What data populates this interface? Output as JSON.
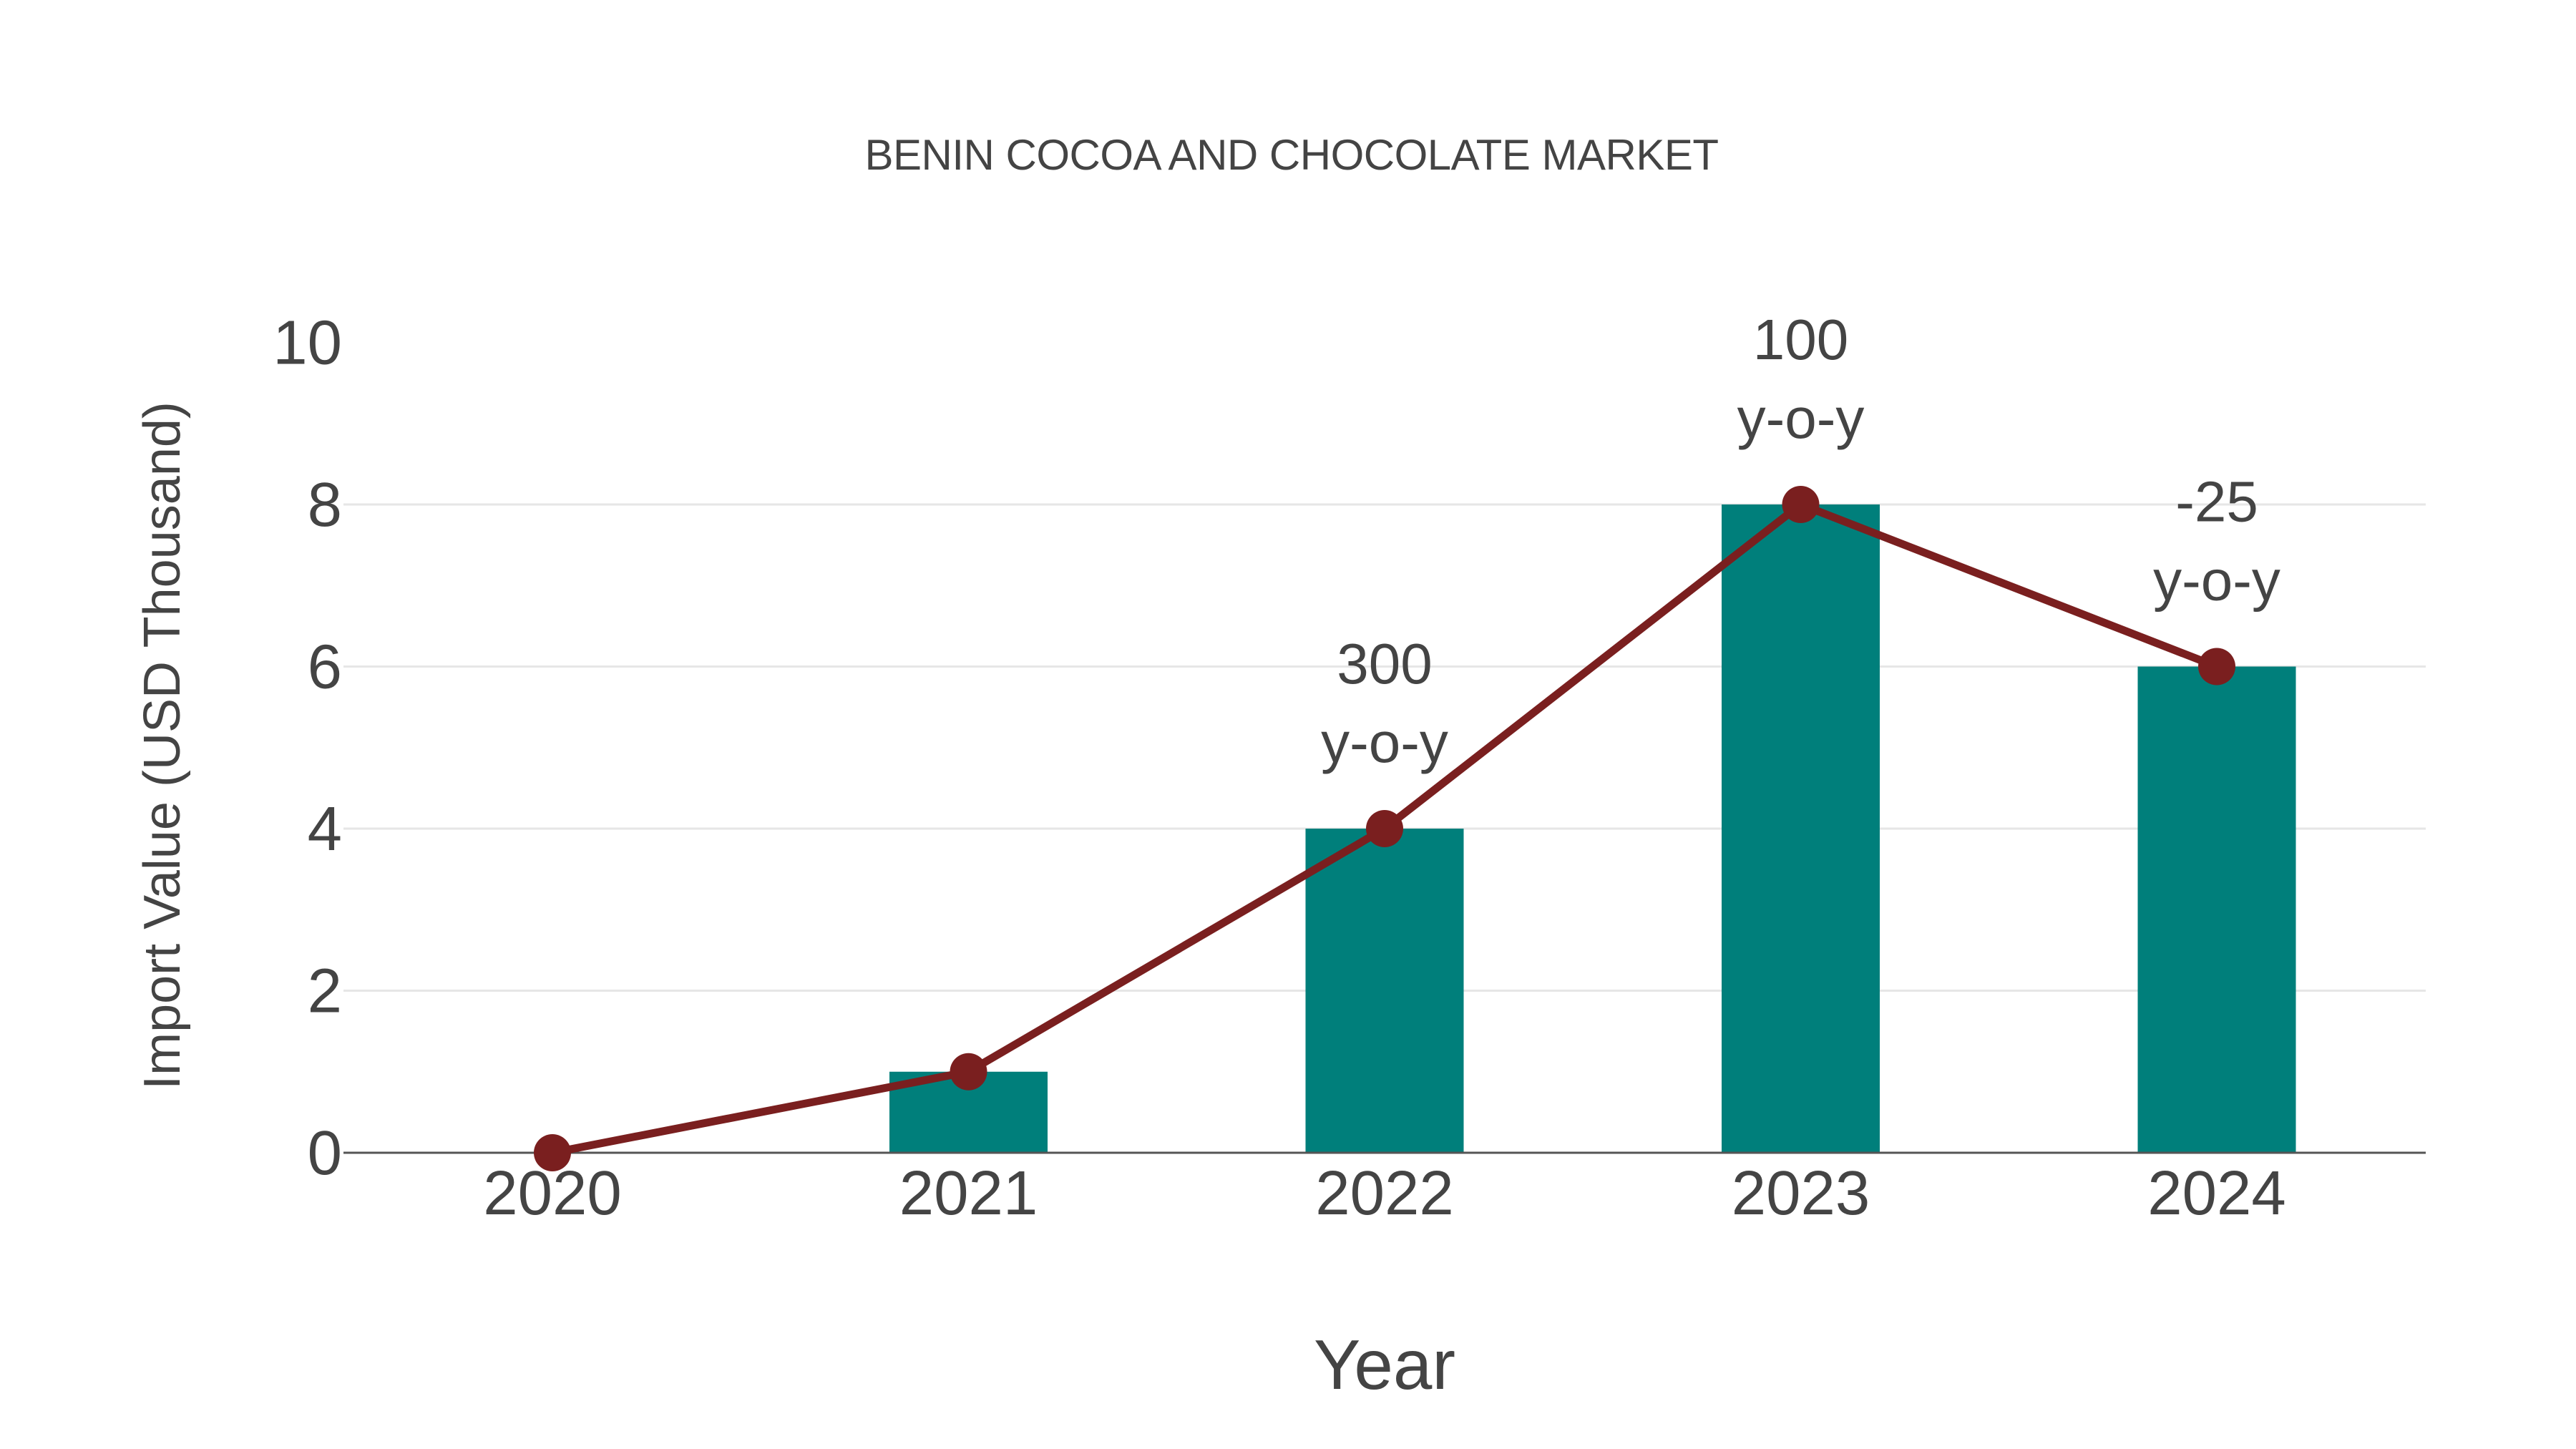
{
  "chart_data": {
    "type": "bar+line",
    "title": "BENIN COCOA AND CHOCOLATE MARKET",
    "xlabel": "Year",
    "ylabel": "Import Value (USD Thousand)",
    "categories": [
      "2020",
      "2021",
      "2022",
      "2023",
      "2024"
    ],
    "series": [
      {
        "name": "Import Value (bars)",
        "type": "bar",
        "values": [
          0,
          1,
          4,
          8,
          6
        ],
        "color": "#007F7B"
      },
      {
        "name": "Import Value (line)",
        "type": "line",
        "values": [
          0,
          1,
          4,
          8,
          6
        ],
        "color": "#7A1F1F"
      }
    ],
    "annotations": [
      {
        "category": "2022",
        "value": "300",
        "suffix": "y-o-y"
      },
      {
        "category": "2023",
        "value": "100",
        "suffix": "y-o-y"
      },
      {
        "category": "2024",
        "value": "-25",
        "suffix": "y-o-y"
      }
    ],
    "yticks": [
      0,
      2,
      4,
      6,
      8,
      10
    ],
    "ylim": [
      0,
      10
    ],
    "grid": true,
    "legend": "none"
  },
  "colors": {
    "bar": "#007F7B",
    "line": "#7A1F1F",
    "text": "#444444",
    "grid": "#E6E6E6",
    "axis": "#555555"
  }
}
